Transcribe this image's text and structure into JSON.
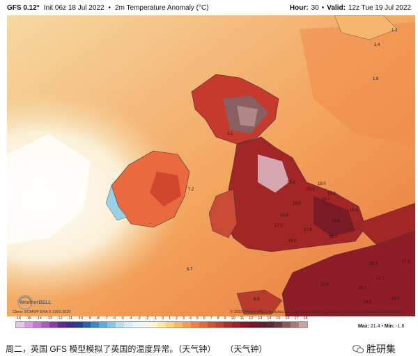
{
  "header": {
    "model": "GFS 0.12°",
    "init": "Init 06z 18 Jul 2022",
    "product": "2m Temperature Anomaly (°C)",
    "hour_label": "Hour:",
    "hour": "30",
    "valid_label": "Valid:",
    "valid": "12z Tue 19 Jul 2022"
  },
  "map_labels": [
    {
      "text": "1.1"
    },
    {
      "text": "1.4"
    },
    {
      "text": "1.9"
    },
    {
      "text": "3.1"
    },
    {
      "text": "15.0"
    },
    {
      "text": "19.2"
    },
    {
      "text": "19.0"
    },
    {
      "text": "19.8"
    },
    {
      "text": "20.1"
    },
    {
      "text": "18.9"
    },
    {
      "text": "19.2"
    },
    {
      "text": "15.9"
    },
    {
      "text": "19.6"
    },
    {
      "text": "17.2"
    },
    {
      "text": "17.8"
    },
    {
      "text": "14.0"
    },
    {
      "text": "18.3"
    },
    {
      "text": "7.2"
    },
    {
      "text": "6.7"
    },
    {
      "text": "17.6"
    },
    {
      "text": "19.3"
    },
    {
      "text": "17.3"
    },
    {
      "text": "17.9"
    },
    {
      "text": "18.1"
    },
    {
      "text": "16.5"
    },
    {
      "text": "16.5"
    },
    {
      "text": "6.9"
    }
  ],
  "logo": {
    "text": "WeatherBELL"
  },
  "credits": {
    "left": "Climo: ECMWF ERA-5 1991-2020",
    "right": "© 2022 WeatherBELL Analytics, LLC. All rights reserved. License required for commercial distribution."
  },
  "scale": {
    "ticks": [
      "-16",
      "-15",
      "-14",
      "-13",
      "-12",
      "-11",
      "-10",
      "-9",
      "-8",
      "-7",
      "-6",
      "-5",
      "-4",
      "-3",
      "-2",
      "-1",
      "0",
      "1",
      "2",
      "3",
      "4",
      "5",
      "6",
      "7",
      "8",
      "9",
      "10",
      "11",
      "12",
      "13",
      "14",
      "15",
      "16",
      "17",
      "18"
    ],
    "colors": [
      "#e7c4ee",
      "#d79be0",
      "#c678d0",
      "#a95cbf",
      "#8a3aa8",
      "#5b2d91",
      "#3b2f95",
      "#27408f",
      "#2a63b1",
      "#3f86c9",
      "#5ea9d9",
      "#86c6e4",
      "#b6e0ee",
      "#d7eef6",
      "#e8f6f9",
      "#f5f5f0",
      "#fff6d6",
      "#fde9a4",
      "#fbd37a",
      "#f8b866",
      "#f59d53",
      "#f08244",
      "#e86839",
      "#dc4e30",
      "#c93b2b",
      "#b32b29",
      "#9c2027",
      "#871a27",
      "#741628",
      "#641d2d",
      "#5a2833",
      "#6a3a3f",
      "#8a5a5d",
      "#a67a7b",
      "#c9a2a2"
    ]
  },
  "maxmin": {
    "max_label": "Max:",
    "max": "21.4",
    "min_label": "Min:",
    "min": "-1.8"
  },
  "caption": {
    "text": "周二，英国 GFS 模型模拟了英国的温度异常。（天气钟）",
    "source": "（天气钟）"
  },
  "watermark": {
    "text": "胜研集"
  }
}
